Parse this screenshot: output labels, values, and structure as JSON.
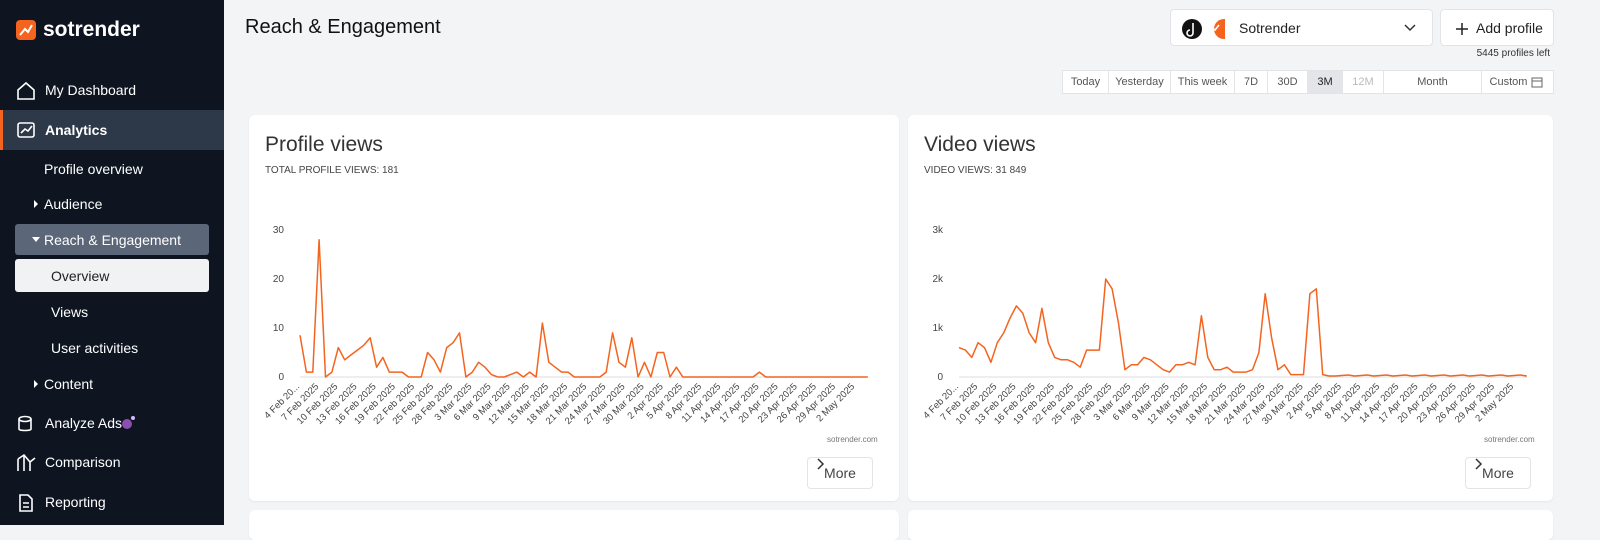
{
  "sidebar": {
    "brand": "sotrender",
    "items": [
      "My Dashboard",
      "Analytics",
      "Profile overview",
      "Audience",
      "Reach & Engagement",
      "Overview",
      "Views",
      "User activities",
      "Content",
      "Analyze Ads",
      "Comparison",
      "Reporting"
    ]
  },
  "header": {
    "title": "Reach & Engagement",
    "profile": "Sotrender",
    "add_profile": "Add profile",
    "profiles_left": "5445 profiles left"
  },
  "date_ranges": [
    "Today",
    "Yesterday",
    "This week",
    "7D",
    "30D",
    "3M",
    "12M",
    "Month",
    "Custom"
  ],
  "chart_data": [
    {
      "type": "line",
      "title": "Profile views",
      "subtitle": "TOTAL PROFILE VIEWS: 181",
      "credit": "sotrender.com",
      "more": "More",
      "categories": [
        "4 Feb 20...",
        null,
        null,
        "7 Feb 2025",
        null,
        null,
        "10 Feb 2025",
        null,
        null,
        "13 Feb 2025",
        null,
        null,
        "16 Feb 2025",
        null,
        null,
        "19 Feb 2025",
        null,
        null,
        "22 Feb 2025",
        null,
        null,
        "25 Feb 2025",
        null,
        null,
        "28 Feb 2025",
        null,
        null,
        "3 Mar 2025",
        null,
        null,
        "6 Mar 2025",
        null,
        null,
        "9 Mar 2025",
        null,
        null,
        "12 Mar 2025",
        null,
        null,
        "15 Mar 2025",
        null,
        null,
        "18 Mar 2025",
        null,
        null,
        "21 Mar 2025",
        null,
        null,
        "24 Mar 2025",
        null,
        null,
        "27 Mar 2025",
        null,
        null,
        "30 Mar 2025",
        null,
        null,
        "2 Apr 2025",
        null,
        null,
        "5 Apr 2025",
        null,
        null,
        "8 Apr 2025",
        null,
        null,
        "11 Apr 2025",
        null,
        null,
        "14 Apr 2025",
        null,
        null,
        "17 Apr 2025",
        null,
        null,
        "20 Apr 2025",
        null,
        null,
        "23 Apr 2025",
        null,
        null,
        "26 Apr 2025",
        null,
        null,
        "29 Apr 2025",
        null,
        null,
        "2 May 2025",
        null,
        null
      ],
      "values": [
        8.5,
        1,
        1,
        28,
        0,
        1,
        6,
        3.5,
        4.5,
        5.5,
        6.5,
        8,
        2,
        4,
        1,
        1,
        1,
        0,
        0,
        0,
        5,
        3.5,
        1,
        6,
        7,
        9,
        0,
        1,
        3,
        2,
        0.5,
        0,
        0,
        0.5,
        1,
        0,
        1,
        0,
        11,
        3,
        2,
        1,
        1,
        0,
        0,
        0,
        0,
        0,
        1,
        9,
        3,
        2,
        8,
        0,
        3,
        0,
        5,
        5,
        0,
        2,
        0,
        0,
        0,
        0,
        0,
        0,
        0,
        0,
        0,
        0,
        0,
        0,
        1,
        0,
        0,
        0,
        0,
        0,
        0,
        0,
        0,
        0,
        0,
        0,
        0,
        0,
        0,
        0,
        0,
        0
      ],
      "color": "#f4641e",
      "ylim": [
        0,
        30
      ],
      "yticks": [
        0,
        10,
        20,
        30
      ],
      "grid": false
    },
    {
      "type": "line",
      "title": "Video views",
      "subtitle": "VIDEO VIEWS: 31 849",
      "credit": "sotrender.com",
      "more": "More",
      "categories": [
        "4 Feb 20...",
        null,
        null,
        "7 Feb 2025",
        null,
        null,
        "10 Feb 2025",
        null,
        null,
        "13 Feb 2025",
        null,
        null,
        "16 Feb 2025",
        null,
        null,
        "19 Feb 2025",
        null,
        null,
        "22 Feb 2025",
        null,
        null,
        "25 Feb 2025",
        null,
        null,
        "28 Feb 2025",
        null,
        null,
        "3 Mar 2025",
        null,
        null,
        "6 Mar 2025",
        null,
        null,
        "9 Mar 2025",
        null,
        null,
        "12 Mar 2025",
        null,
        null,
        "15 Mar 2025",
        null,
        null,
        "18 Mar 2025",
        null,
        null,
        "21 Mar 2025",
        null,
        null,
        "24 Mar 2025",
        null,
        null,
        "27 Mar 2025",
        null,
        null,
        "30 Mar 2025",
        null,
        null,
        "2 Apr 2025",
        null,
        null,
        "5 Apr 2025",
        null,
        null,
        "8 Apr 2025",
        null,
        null,
        "11 Apr 2025",
        null,
        null,
        "14 Apr 2025",
        null,
        null,
        "17 Apr 2025",
        null,
        null,
        "20 Apr 2025",
        null,
        null,
        "23 Apr 2025",
        null,
        null,
        "26 Apr 2025",
        null,
        null,
        "29 Apr 2025",
        null,
        null,
        "2 May 2025",
        null,
        null
      ],
      "values": [
        600,
        550,
        400,
        700,
        600,
        300,
        700,
        900,
        1200,
        1450,
        1300,
        900,
        700,
        1400,
        700,
        400,
        350,
        350,
        300,
        200,
        550,
        550,
        550,
        2000,
        1800,
        1100,
        150,
        250,
        250,
        400,
        350,
        250,
        150,
        100,
        250,
        250,
        300,
        250,
        1250,
        400,
        150,
        150,
        200,
        100,
        100,
        100,
        150,
        500,
        1700,
        800,
        150,
        250,
        50,
        50,
        50,
        1700,
        1800,
        50,
        20,
        20,
        30,
        40,
        20,
        30,
        40,
        20,
        30,
        40,
        20,
        30,
        40,
        20,
        30,
        40,
        20,
        30,
        40,
        20,
        30,
        40,
        20,
        30,
        40,
        20,
        30,
        40,
        20,
        30,
        40,
        20
      ],
      "color": "#f4641e",
      "ylim": [
        0,
        3000
      ],
      "yticks": [
        0,
        {
          "value": 1000,
          "label": "1k"
        },
        {
          "value": 2000,
          "label": "2k"
        },
        {
          "value": 3000,
          "label": "3k"
        }
      ],
      "grid": false
    }
  ]
}
